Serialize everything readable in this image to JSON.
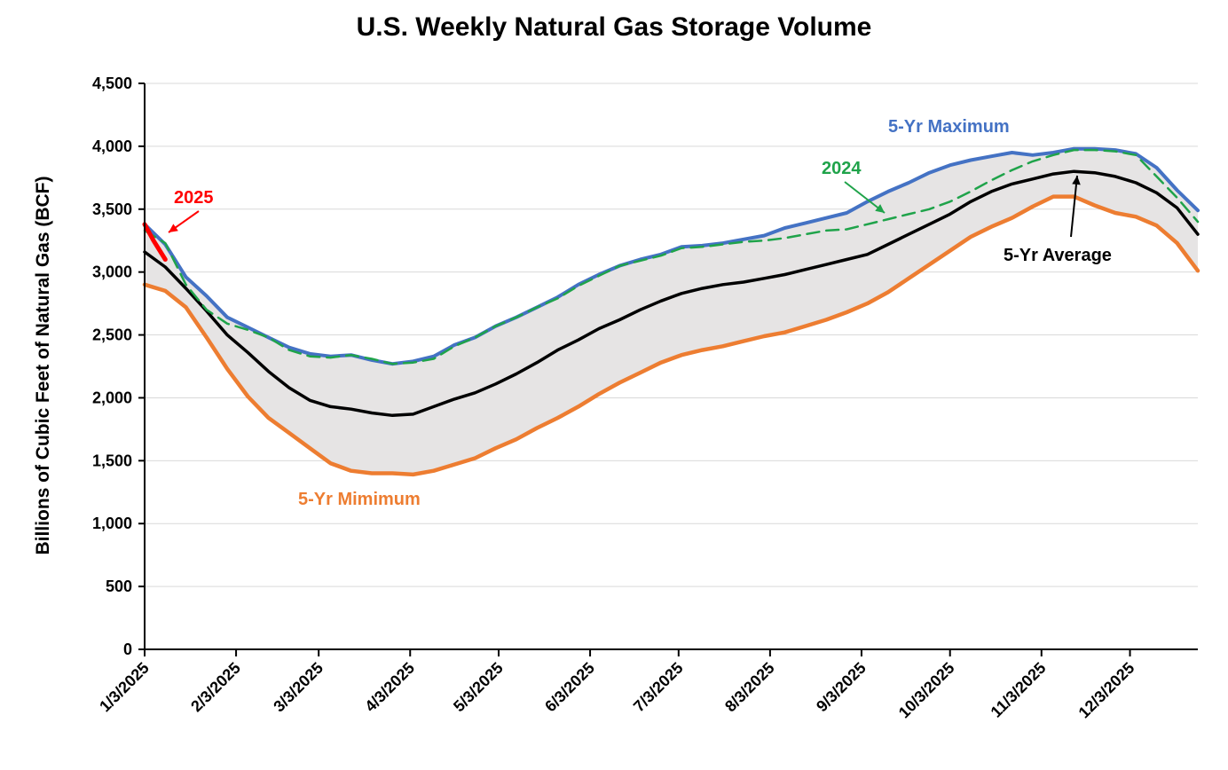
{
  "chart_data": {
    "type": "line",
    "title": "U.S. Weekly Natural Gas Storage Volume",
    "ylabel": "Billions of Cubic Feet of Natural Gas (BCF)",
    "xlabel": "",
    "ylim": [
      0,
      4500
    ],
    "yticks": [
      0,
      500,
      1000,
      1500,
      2000,
      2500,
      3000,
      3500,
      4000,
      4500
    ],
    "ytick_labels": [
      "0",
      "500",
      "1,000",
      "1,500",
      "2,000",
      "2,500",
      "3,000",
      "3,500",
      "4,000",
      "4,500"
    ],
    "xrange_days": [
      0,
      357
    ],
    "xticks": [
      {
        "label": "1/3/2025",
        "day": 0
      },
      {
        "label": "2/3/2025",
        "day": 31
      },
      {
        "label": "3/3/2025",
        "day": 59
      },
      {
        "label": "4/3/2025",
        "day": 90
      },
      {
        "label": "5/3/2025",
        "day": 120
      },
      {
        "label": "6/3/2025",
        "day": 151
      },
      {
        "label": "7/3/2025",
        "day": 181
      },
      {
        "label": "8/3/2025",
        "day": 212
      },
      {
        "label": "9/3/2025",
        "day": 243
      },
      {
        "label": "10/3/2025",
        "day": 273
      },
      {
        "label": "11/3/2025",
        "day": 304
      },
      {
        "label": "12/3/2025",
        "day": 334
      }
    ],
    "grid": "horizontal",
    "band": {
      "upper": "5-Yr Maximum",
      "lower": "5-Yr Mimimum",
      "color": "#e6e4e4"
    },
    "series": [
      {
        "name": "5-Yr Maximum",
        "color": "#4472c4",
        "width": 4,
        "dash": "",
        "x": [
          0,
          7,
          14,
          21,
          28,
          35,
          42,
          49,
          56,
          63,
          70,
          77,
          84,
          91,
          98,
          105,
          112,
          119,
          126,
          133,
          140,
          147,
          154,
          161,
          168,
          175,
          182,
          189,
          196,
          203,
          210,
          217,
          224,
          231,
          238,
          245,
          252,
          259,
          266,
          273,
          280,
          287,
          294,
          301,
          308,
          315,
          322,
          329,
          336,
          343,
          350,
          357
        ],
        "y": [
          3380,
          3220,
          2960,
          2810,
          2640,
          2560,
          2480,
          2400,
          2350,
          2330,
          2340,
          2300,
          2270,
          2290,
          2330,
          2420,
          2480,
          2570,
          2640,
          2720,
          2800,
          2900,
          2980,
          3050,
          3100,
          3140,
          3200,
          3210,
          3230,
          3260,
          3290,
          3350,
          3390,
          3430,
          3470,
          3560,
          3640,
          3710,
          3790,
          3850,
          3890,
          3920,
          3950,
          3930,
          3950,
          3980,
          3980,
          3970,
          3940,
          3830,
          3650,
          3490
        ]
      },
      {
        "name": "5-Yr Average",
        "color": "#000000",
        "width": 3.5,
        "dash": "",
        "x": [
          0,
          7,
          14,
          21,
          28,
          35,
          42,
          49,
          56,
          63,
          70,
          77,
          84,
          91,
          98,
          105,
          112,
          119,
          126,
          133,
          140,
          147,
          154,
          161,
          168,
          175,
          182,
          189,
          196,
          203,
          210,
          217,
          224,
          231,
          238,
          245,
          252,
          259,
          266,
          273,
          280,
          287,
          294,
          301,
          308,
          315,
          322,
          329,
          336,
          343,
          350,
          357
        ],
        "y": [
          3160,
          3040,
          2870,
          2690,
          2500,
          2360,
          2210,
          2080,
          1980,
          1930,
          1910,
          1880,
          1860,
          1870,
          1930,
          1990,
          2040,
          2110,
          2190,
          2280,
          2380,
          2460,
          2550,
          2620,
          2700,
          2770,
          2830,
          2870,
          2900,
          2920,
          2950,
          2980,
          3020,
          3060,
          3100,
          3140,
          3220,
          3300,
          3380,
          3460,
          3560,
          3640,
          3700,
          3740,
          3780,
          3800,
          3790,
          3760,
          3710,
          3630,
          3510,
          3300
        ]
      },
      {
        "name": "5-Yr Mimimum",
        "color": "#ed7d31",
        "width": 4.5,
        "dash": "",
        "x": [
          0,
          7,
          14,
          21,
          28,
          35,
          42,
          49,
          56,
          63,
          70,
          77,
          84,
          91,
          98,
          105,
          112,
          119,
          126,
          133,
          140,
          147,
          154,
          161,
          168,
          175,
          182,
          189,
          196,
          203,
          210,
          217,
          224,
          231,
          238,
          245,
          252,
          259,
          266,
          273,
          280,
          287,
          294,
          301,
          308,
          315,
          322,
          329,
          336,
          343,
          350,
          357
        ],
        "y": [
          2900,
          2850,
          2720,
          2480,
          2230,
          2010,
          1840,
          1720,
          1600,
          1480,
          1420,
          1400,
          1400,
          1390,
          1420,
          1470,
          1520,
          1600,
          1670,
          1760,
          1840,
          1930,
          2030,
          2120,
          2200,
          2280,
          2340,
          2380,
          2410,
          2450,
          2490,
          2520,
          2570,
          2620,
          2680,
          2750,
          2840,
          2950,
          3060,
          3170,
          3280,
          3360,
          3430,
          3520,
          3600,
          3600,
          3530,
          3470,
          3440,
          3370,
          3230,
          3010
        ]
      },
      {
        "name": "2024",
        "color": "#1fa34a",
        "width": 2.5,
        "dash": "14,8",
        "x": [
          0,
          7,
          14,
          21,
          28,
          35,
          42,
          49,
          56,
          63,
          70,
          77,
          84,
          91,
          98,
          105,
          112,
          119,
          126,
          133,
          140,
          147,
          154,
          161,
          168,
          175,
          182,
          189,
          196,
          203,
          210,
          217,
          224,
          231,
          238,
          245,
          252,
          259,
          266,
          273,
          280,
          287,
          294,
          301,
          308,
          315,
          322,
          329,
          336,
          343,
          350,
          357
        ],
        "y": [
          3330,
          3230,
          2900,
          2700,
          2590,
          2540,
          2480,
          2380,
          2330,
          2320,
          2340,
          2310,
          2270,
          2280,
          2310,
          2410,
          2480,
          2570,
          2640,
          2720,
          2790,
          2890,
          2970,
          3050,
          3090,
          3130,
          3190,
          3200,
          3220,
          3240,
          3250,
          3270,
          3300,
          3330,
          3340,
          3380,
          3420,
          3460,
          3500,
          3560,
          3640,
          3730,
          3810,
          3880,
          3930,
          3970,
          3970,
          3960,
          3930,
          3760,
          3590,
          3400
        ]
      },
      {
        "name": "2025",
        "color": "#ff0000",
        "width": 5,
        "dash": "",
        "x": [
          0,
          3,
          7
        ],
        "y": [
          3380,
          3250,
          3100
        ]
      }
    ],
    "annotations": [
      {
        "text": "5-Yr Maximum",
        "color": "#4472c4"
      },
      {
        "text": "2024",
        "color": "#1fa34a"
      },
      {
        "text": "2025",
        "color": "#ff0000"
      },
      {
        "text": "5-Yr Average",
        "color": "#000000"
      },
      {
        "text": "5-Yr Mimimum",
        "color": "#ed7d31"
      }
    ]
  }
}
